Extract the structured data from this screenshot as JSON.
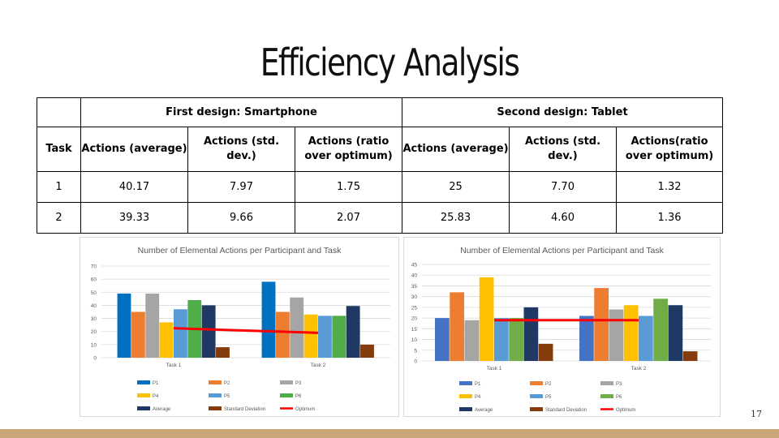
{
  "slide": {
    "title": "Efficiency Analysis",
    "page_number": "17",
    "footer_color": "#cba67a"
  },
  "table": {
    "group_headers": [
      "First design: Smartphone",
      "Second design: Tablet"
    ],
    "task_header": "Task",
    "columns": [
      "Actions (average)",
      "Actions (std. dev.)",
      "Actions (ratio over optimum)",
      "Actions (average)",
      "Actions (std. dev.)",
      "Actions(ratio over optimum)"
    ],
    "rows": [
      [
        "1",
        "40.17",
        "7.97",
        "1.75",
        "25",
        "7.70",
        "1.32"
      ],
      [
        "2",
        "39.33",
        "9.66",
        "2.07",
        "25.83",
        "4.60",
        "1.36"
      ]
    ]
  },
  "chart_data": [
    {
      "type": "bar",
      "title": "Number of Elemental Actions per Participant and Task",
      "categories": [
        "Task 1",
        "Task 2"
      ],
      "ylim": [
        0,
        70
      ],
      "yticks": [
        0,
        10,
        20,
        30,
        40,
        50,
        60,
        70
      ],
      "grid": true,
      "legend_placement": "bottom",
      "series": [
        {
          "name": "P1",
          "color": "#0070c0",
          "values": [
            49,
            58
          ]
        },
        {
          "name": "P2",
          "color": "#ed7d31",
          "values": [
            35,
            35
          ]
        },
        {
          "name": "P3",
          "color": "#a5a5a5",
          "values": [
            49,
            46
          ]
        },
        {
          "name": "P4",
          "color": "#ffc000",
          "values": [
            27,
            33
          ]
        },
        {
          "name": "P5",
          "color": "#5b9bd5",
          "values": [
            37,
            32
          ]
        },
        {
          "name": "P6",
          "color": "#4fae4a",
          "values": [
            44,
            32
          ]
        },
        {
          "name": "Average",
          "color": "#203864",
          "values": [
            40,
            39.5
          ]
        },
        {
          "name": "Standard Deviation",
          "color": "#843c0c",
          "values": [
            8,
            10
          ]
        }
      ],
      "line": {
        "name": "Optimum",
        "color": "#ff0000",
        "values": [
          22.5,
          19
        ]
      }
    },
    {
      "type": "bar",
      "title": "Number of Elemental Actions per Participant and Task",
      "categories": [
        "Task 1",
        "Task 2"
      ],
      "ylim": [
        0,
        45
      ],
      "yticks": [
        0,
        5,
        10,
        15,
        20,
        25,
        30,
        35,
        40,
        45
      ],
      "grid": true,
      "legend_placement": "bottom",
      "series": [
        {
          "name": "P1",
          "color": "#4472c4",
          "values": [
            20,
            21
          ]
        },
        {
          "name": "P2",
          "color": "#ed7d31",
          "values": [
            32,
            34
          ]
        },
        {
          "name": "P3",
          "color": "#a5a5a5",
          "values": [
            19,
            24
          ]
        },
        {
          "name": "P4",
          "color": "#ffc000",
          "values": [
            39,
            26
          ]
        },
        {
          "name": "P5",
          "color": "#5b9bd5",
          "values": [
            20,
            21
          ]
        },
        {
          "name": "P6",
          "color": "#70ad47",
          "values": [
            20,
            29
          ]
        },
        {
          "name": "Average",
          "color": "#203864",
          "values": [
            25,
            26
          ]
        },
        {
          "name": "Standard Deviation",
          "color": "#843c0c",
          "values": [
            8,
            4.5
          ]
        }
      ],
      "line": {
        "name": "Optimum",
        "color": "#ff0000",
        "values": [
          19,
          19
        ]
      }
    }
  ]
}
